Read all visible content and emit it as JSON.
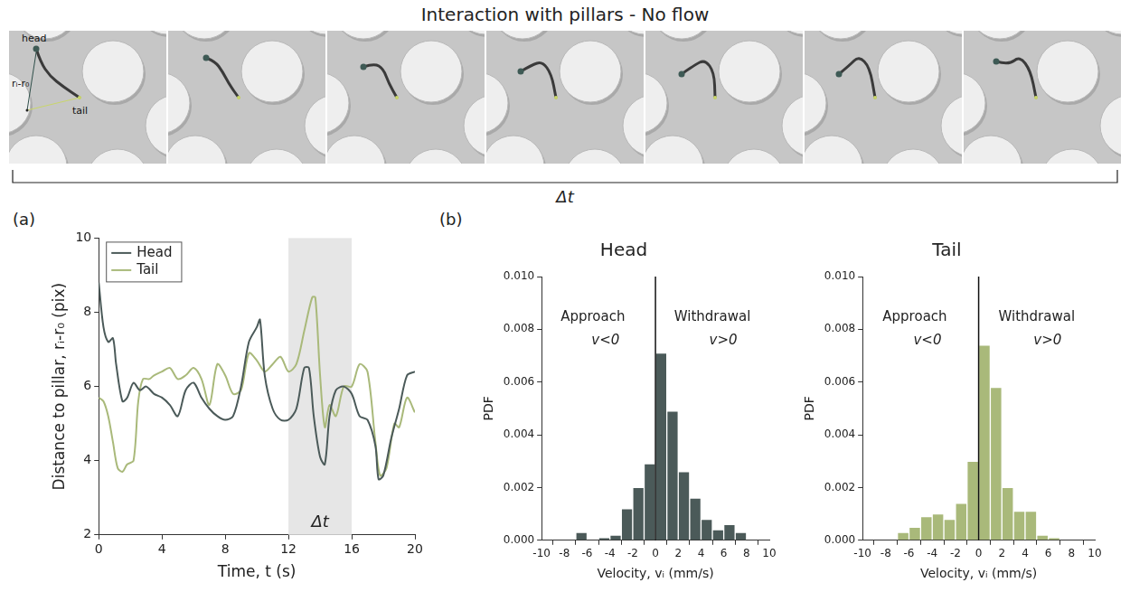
{
  "figure": {
    "title": "Interaction with pillars - No flow",
    "frame_labels": [
      "head",
      "rᵢ-r₀",
      "tail"
    ],
    "span_label": "Δt"
  },
  "chart_data": [
    {
      "panel": "(a)",
      "type": "line",
      "x_label": "Time, t (s)",
      "y_label": "Distance to pillar, rᵢ-r₀ (pix)",
      "xlim": [
        0,
        20
      ],
      "xticks": [
        0,
        4,
        8,
        12,
        16,
        20
      ],
      "ylim": [
        2,
        10
      ],
      "yticks": [
        2,
        4,
        6,
        8,
        10
      ],
      "grid": false,
      "legend": "upper left",
      "shaded_interval": {
        "range": [
          12,
          16
        ],
        "label": "Δt"
      },
      "series": [
        {
          "name": "Head",
          "color": "#4b5a59",
          "x": [
            0,
            0.3,
            0.6,
            0.9,
            1.1,
            1.5,
            1.8,
            2.2,
            2.6,
            3.0,
            3.5,
            4.0,
            4.5,
            5.0,
            5.5,
            6.0,
            6.5,
            7.0,
            7.5,
            8.0,
            8.5,
            9.0,
            9.5,
            10.0,
            10.2,
            10.5,
            11.0,
            11.5,
            12.0,
            12.5,
            13.0,
            13.3,
            13.6,
            14.0,
            14.3,
            14.6,
            15.0,
            15.5,
            16.0,
            16.5,
            17.0,
            17.5,
            17.7,
            18.0,
            18.5,
            19.0,
            19.5,
            20.0
          ],
          "values": [
            8.8,
            7.6,
            7.2,
            7.3,
            6.6,
            5.6,
            5.7,
            6.1,
            5.9,
            6.0,
            5.8,
            5.7,
            5.5,
            5.2,
            5.9,
            6.1,
            5.7,
            5.4,
            5.2,
            5.1,
            5.2,
            6.0,
            7.2,
            7.6,
            7.8,
            6.3,
            5.4,
            5.1,
            5.1,
            5.4,
            6.5,
            6.5,
            5.2,
            4.1,
            3.9,
            5.2,
            5.9,
            6.0,
            5.8,
            5.2,
            5.1,
            4.4,
            3.5,
            3.6,
            4.6,
            5.4,
            6.3,
            6.4
          ]
        },
        {
          "name": "Tail",
          "color": "#a9b97a",
          "x": [
            0,
            0.3,
            0.6,
            0.9,
            1.2,
            1.5,
            1.8,
            2.2,
            2.5,
            2.8,
            3.2,
            3.5,
            4.0,
            4.5,
            5.0,
            5.5,
            6.0,
            6.5,
            7.0,
            7.5,
            8.0,
            8.5,
            9.0,
            9.5,
            10.0,
            10.5,
            11.0,
            11.5,
            12.0,
            12.5,
            13.0,
            13.5,
            13.7,
            14.0,
            14.3,
            14.6,
            15.0,
            15.5,
            16.0,
            16.5,
            17.0,
            17.5,
            17.8,
            18.2,
            18.7,
            19.0,
            19.5,
            20.0
          ],
          "values": [
            5.7,
            5.6,
            5.2,
            4.5,
            3.8,
            3.7,
            3.9,
            4.0,
            5.6,
            6.2,
            6.2,
            6.3,
            6.4,
            6.5,
            6.2,
            6.3,
            6.5,
            6.2,
            5.5,
            6.6,
            6.3,
            5.8,
            5.9,
            6.9,
            6.7,
            6.4,
            6.6,
            6.8,
            6.4,
            6.6,
            7.5,
            8.4,
            8.4,
            6.3,
            4.9,
            5.5,
            5.2,
            6.0,
            6.0,
            6.6,
            6.4,
            4.5,
            3.6,
            3.8,
            5.0,
            4.9,
            5.7,
            5.3
          ]
        }
      ]
    },
    {
      "panel": "(b)",
      "type": "histogram",
      "title": "Head",
      "x_label": "Velocity, vᵢ (mm/s)",
      "y_label": "PDF",
      "color": "#4b5a59",
      "grid": false,
      "bins": [
        -8,
        -7,
        -6,
        -5,
        -4,
        -3,
        -2,
        -1,
        0,
        1,
        2,
        3,
        4,
        5,
        6,
        7,
        8
      ],
      "values": [
        0,
        0.0003,
        0,
        0.0001,
        0.0002,
        0.0012,
        0.002,
        0.0029,
        0.0071,
        0.0049,
        0.0026,
        0.0016,
        0.0008,
        0.0004,
        0.0006,
        0.0003
      ],
      "xlim": [
        -10,
        10
      ],
      "xticks": [
        -10,
        -8,
        -6,
        -4,
        -2,
        0,
        2,
        4,
        6,
        8,
        10
      ],
      "ylim": [
        0,
        0.01
      ],
      "yticks": [
        {
          "value": 0,
          "label": "0.000"
        },
        {
          "value": 0.002,
          "label": "0.002"
        },
        {
          "value": 0.004,
          "label": "0.004"
        },
        {
          "value": 0.006,
          "label": "0.006"
        },
        {
          "value": 0.008,
          "label": "0.008"
        },
        {
          "value": 0.01,
          "label": "0.010"
        }
      ],
      "reference_line_x": 0,
      "left_note": [
        "Approach",
        "v<0"
      ],
      "right_note": [
        "Withdrawal",
        "v>0"
      ]
    },
    {
      "type": "histogram",
      "title": "Tail",
      "x_label": "Velocity, vᵢ (mm/s)",
      "y_label": "PDF",
      "color": "#a9b97a",
      "grid": false,
      "bins": [
        -8,
        -7,
        -6,
        -5,
        -4,
        -3,
        -2,
        -1,
        0,
        1,
        2,
        3,
        4,
        5,
        6,
        7,
        8
      ],
      "values": [
        0,
        0.0003,
        0.0005,
        0.0009,
        0.001,
        0.0008,
        0.0014,
        0.003,
        0.0074,
        0.0058,
        0.002,
        0.0011,
        0.0011,
        0.0002,
        0.0001,
        0
      ],
      "xlim": [
        -10,
        10
      ],
      "xticks": [
        -10,
        -8,
        -6,
        -4,
        -2,
        0,
        2,
        4,
        6,
        8,
        10
      ],
      "ylim": [
        0,
        0.01
      ],
      "yticks": [
        {
          "value": 0,
          "label": "0.000"
        },
        {
          "value": 0.002,
          "label": "0.002"
        },
        {
          "value": 0.004,
          "label": "0.004"
        },
        {
          "value": 0.006,
          "label": "0.006"
        },
        {
          "value": 0.008,
          "label": "0.008"
        },
        {
          "value": 0.01,
          "label": "0.010"
        }
      ],
      "reference_line_x": 0,
      "left_note": [
        "Approach",
        "v<0"
      ],
      "right_note": [
        "Withdrawal",
        "v>0"
      ]
    }
  ]
}
